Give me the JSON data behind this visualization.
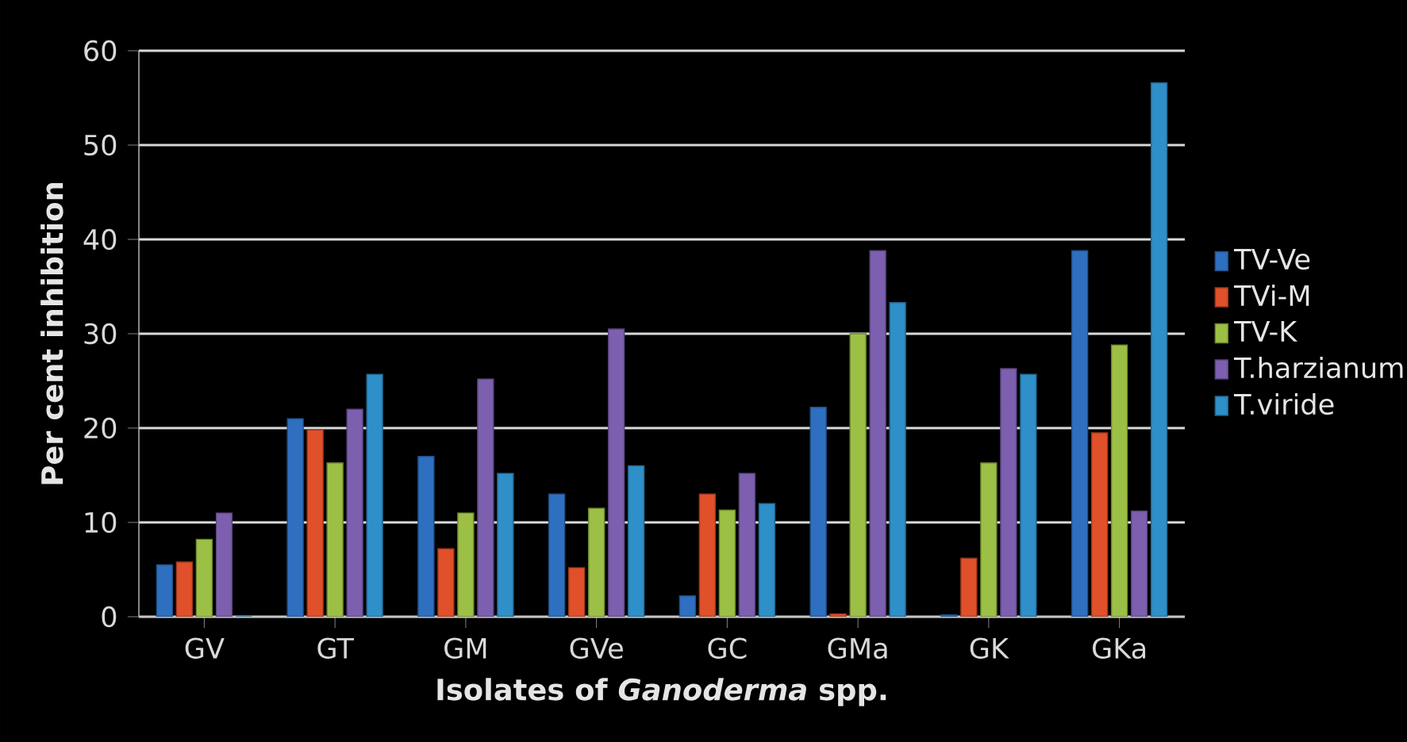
{
  "chart_data": {
    "type": "bar",
    "xlabel": "Isolates of *Ganoderma* spp.",
    "ylabel": "Per cent inhibition",
    "categories": [
      "GV",
      "GT",
      "GM",
      "GVe",
      "GC",
      "GMa",
      "GK",
      "GKa"
    ],
    "series": [
      {
        "name": "TV-Ve",
        "color": "#2f6fc0",
        "values": [
          5.5,
          21,
          17,
          13,
          2.2,
          22.2,
          0.2,
          38.8
        ]
      },
      {
        "name": "TVi-M",
        "color": "#e0502a",
        "values": [
          5.8,
          19.8,
          7.2,
          5.2,
          13,
          0.3,
          6.2,
          19.5
        ]
      },
      {
        "name": "TV-K",
        "color": "#9cc045",
        "values": [
          8.2,
          16.3,
          11,
          11.5,
          11.3,
          30,
          16.3,
          28.8
        ]
      },
      {
        "name": "T.harzianum",
        "color": "#7c5fae",
        "values": [
          11,
          22,
          25.2,
          30.5,
          15.2,
          38.8,
          26.3,
          11.2
        ]
      },
      {
        "name": "T.viride",
        "color": "#2f8fc8",
        "values": [
          0,
          25.7,
          15.2,
          16,
          12,
          33.3,
          25.7,
          56.6
        ]
      }
    ],
    "ylim": [
      0,
      60
    ],
    "yticks": [
      0,
      10,
      20,
      30,
      40,
      50,
      60
    ],
    "grid": "y",
    "legend": "right"
  }
}
